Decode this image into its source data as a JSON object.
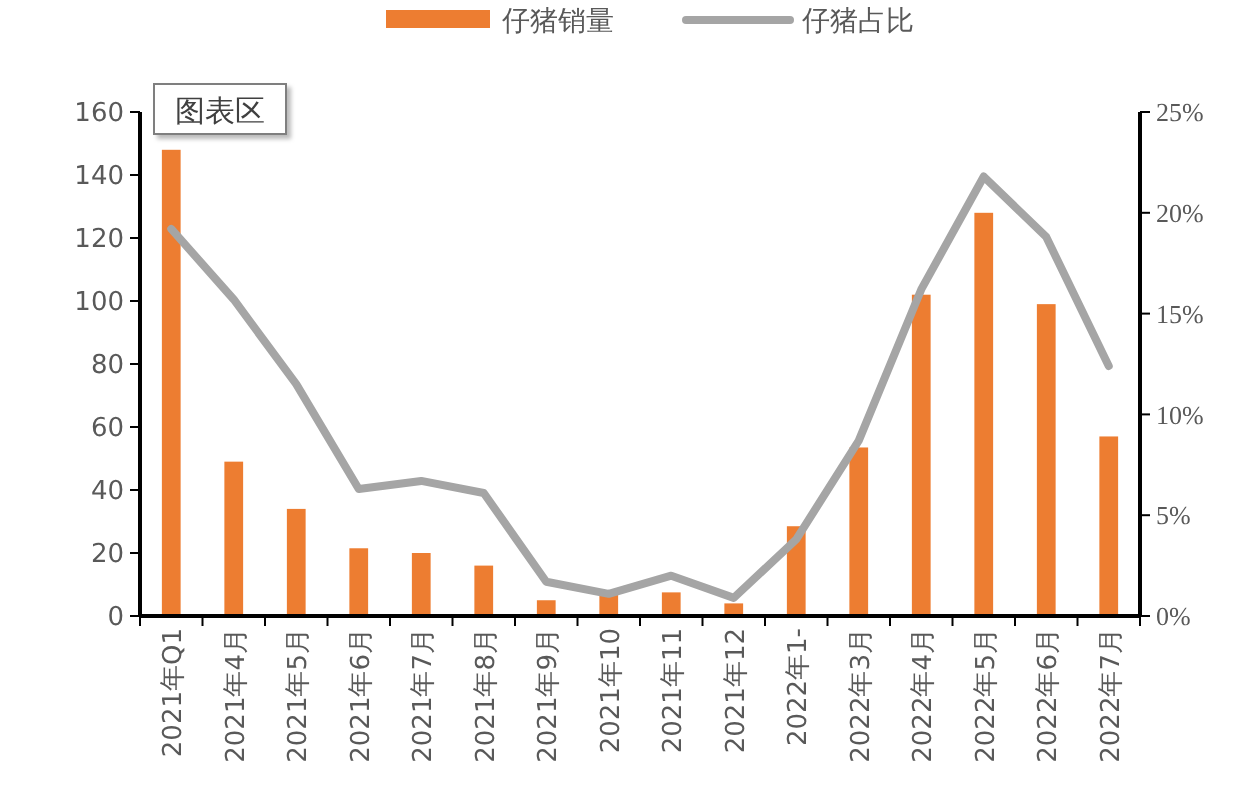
{
  "chart_data": {
    "type": "bar",
    "categories": [
      "2021年Q1",
      "2021年4月",
      "2021年5月",
      "2021年6月",
      "2021年7月",
      "2021年8月",
      "2021年9月",
      "2021年10",
      "2021年11",
      "2021年12",
      "2022年1-",
      "2022年3月",
      "2022年4月",
      "2022年5月",
      "2022年6月",
      "2022年7月"
    ],
    "series": [
      {
        "name": "仔猪销量",
        "color": "#ed7d31",
        "values": [
          148,
          49,
          34,
          21.5,
          20,
          16,
          5,
          7,
          7.5,
          4,
          28.5,
          53.5,
          102,
          128,
          99,
          57
        ]
      },
      {
        "name": "仔猪占比",
        "type": "line",
        "axis": "y2",
        "color": "#a5a5a5",
        "values": [
          19.2,
          15.7,
          11.5,
          6.3,
          6.7,
          6.1,
          1.7,
          1.1,
          2.0,
          0.9,
          3.8,
          8.7,
          16.2,
          21.8,
          18.8,
          12.4
        ]
      }
    ],
    "ylim": [
      0,
      160
    ],
    "yticks": [
      0,
      20,
      40,
      60,
      80,
      100,
      120,
      140,
      160
    ],
    "y2lim": [
      0,
      25
    ],
    "y2ticks": [
      {
        "value": 0,
        "label": "0%"
      },
      {
        "value": 5,
        "label": "5%"
      },
      {
        "value": 10,
        "label": "10%"
      },
      {
        "value": 15,
        "label": "15%"
      },
      {
        "value": 20,
        "label": "20%"
      },
      {
        "value": 25,
        "label": "25%"
      }
    ],
    "legend": "top",
    "grid": false,
    "annotations": [
      "图表区"
    ]
  }
}
